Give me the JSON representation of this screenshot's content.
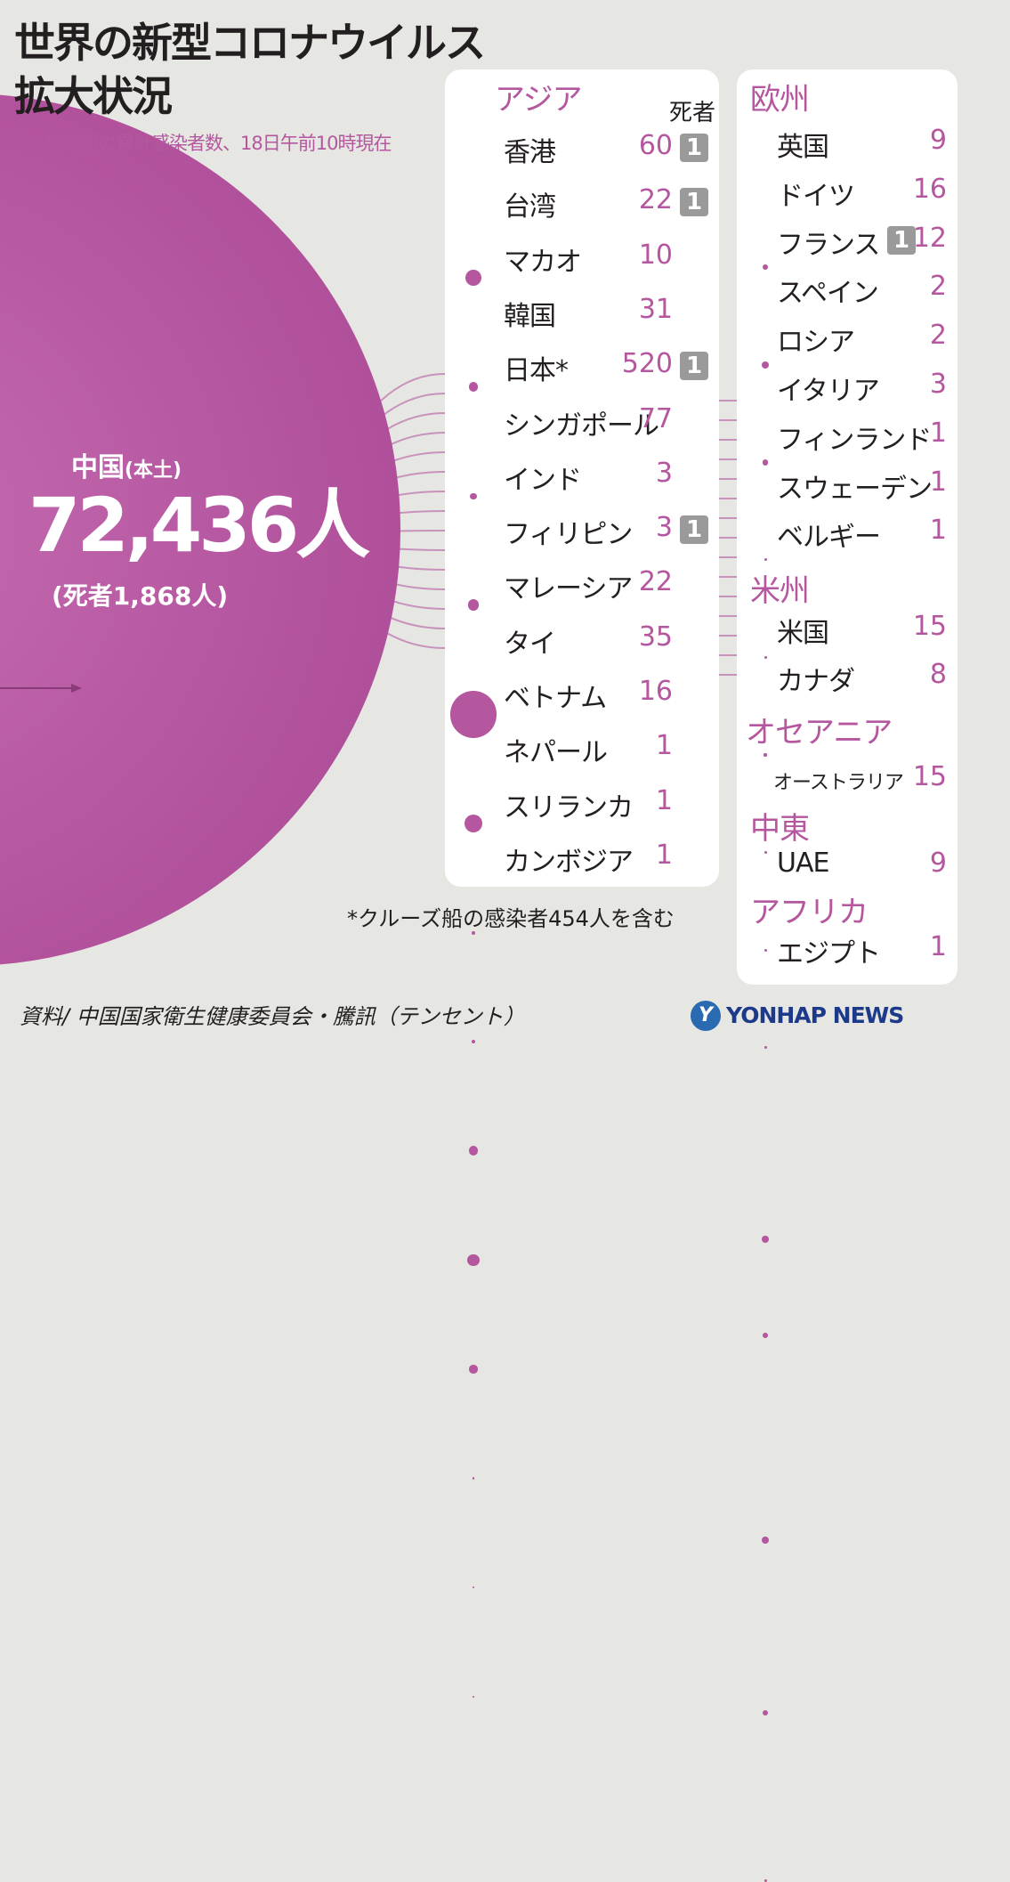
{
  "header": {
    "title_line1": "世界の新型コロナウイルス",
    "title_line2": "拡大状況",
    "subtitle": "国・地域別の累計感染者数、18日午前10時現在"
  },
  "colors": {
    "accent": "#b5579f",
    "badge": "#9a9a9a",
    "background": "#e6e7e3",
    "china_circle": "#bc5aa7"
  },
  "china": {
    "label": "中国",
    "label_note": "(本土)",
    "cases": "72,436",
    "unit": "人",
    "deaths_text": "(死者1,868人)"
  },
  "chart_data": {
    "type": "table",
    "deaths_header": "死者",
    "regions": [
      {
        "name": "アジア",
        "rows": [
          {
            "name": "香港",
            "cases": 60,
            "deaths": 1
          },
          {
            "name": "台湾",
            "cases": 22,
            "deaths": 1
          },
          {
            "name": "マカオ",
            "cases": 10,
            "deaths": null
          },
          {
            "name": "韓国",
            "cases": 31,
            "deaths": null
          },
          {
            "name": "日本*",
            "cases": 520,
            "deaths": 1
          },
          {
            "name": "シンガポール",
            "cases": 77,
            "deaths": null
          },
          {
            "name": "インド",
            "cases": 3,
            "deaths": null
          },
          {
            "name": "フィリピン",
            "cases": 3,
            "deaths": 1
          },
          {
            "name": "マレーシア",
            "cases": 22,
            "deaths": null
          },
          {
            "name": "タイ",
            "cases": 35,
            "deaths": null
          },
          {
            "name": "ベトナム",
            "cases": 16,
            "deaths": null
          },
          {
            "name": "ネパール",
            "cases": 1,
            "deaths": null
          },
          {
            "name": "スリランカ",
            "cases": 1,
            "deaths": null
          },
          {
            "name": "カンボジア",
            "cases": 1,
            "deaths": null
          }
        ]
      },
      {
        "name": "欧州",
        "rows": [
          {
            "name": "英国",
            "cases": 9,
            "deaths": null
          },
          {
            "name": "ドイツ",
            "cases": 16,
            "deaths": null
          },
          {
            "name": "フランス",
            "cases": 12,
            "deaths": 1
          },
          {
            "name": "スペイン",
            "cases": 2,
            "deaths": null
          },
          {
            "name": "ロシア",
            "cases": 2,
            "deaths": null
          },
          {
            "name": "イタリア",
            "cases": 3,
            "deaths": null
          },
          {
            "name": "フィンランド",
            "cases": 1,
            "deaths": null
          },
          {
            "name": "スウェーデン",
            "cases": 1,
            "deaths": null
          },
          {
            "name": "ベルギー",
            "cases": 1,
            "deaths": null
          }
        ]
      },
      {
        "name": "米州",
        "rows": [
          {
            "name": "米国",
            "cases": 15,
            "deaths": null
          },
          {
            "name": "カナダ",
            "cases": 8,
            "deaths": null
          }
        ]
      },
      {
        "name": "オセアニア",
        "rows": [
          {
            "name": "オーストラリア",
            "cases": 15,
            "deaths": null
          }
        ]
      },
      {
        "name": "中東",
        "rows": [
          {
            "name": "UAE",
            "cases": 9,
            "deaths": null
          }
        ]
      },
      {
        "name": "アフリカ",
        "rows": [
          {
            "name": "エジプト",
            "cases": 1,
            "deaths": null
          }
        ]
      }
    ]
  },
  "footnote": "*クルーズ船の感染者454人を含む",
  "source": "資料/ 中国国家衛生健康委員会・騰訊（テンセント）",
  "logo": {
    "mark": "Y",
    "text": "YONHAP NEWS"
  }
}
